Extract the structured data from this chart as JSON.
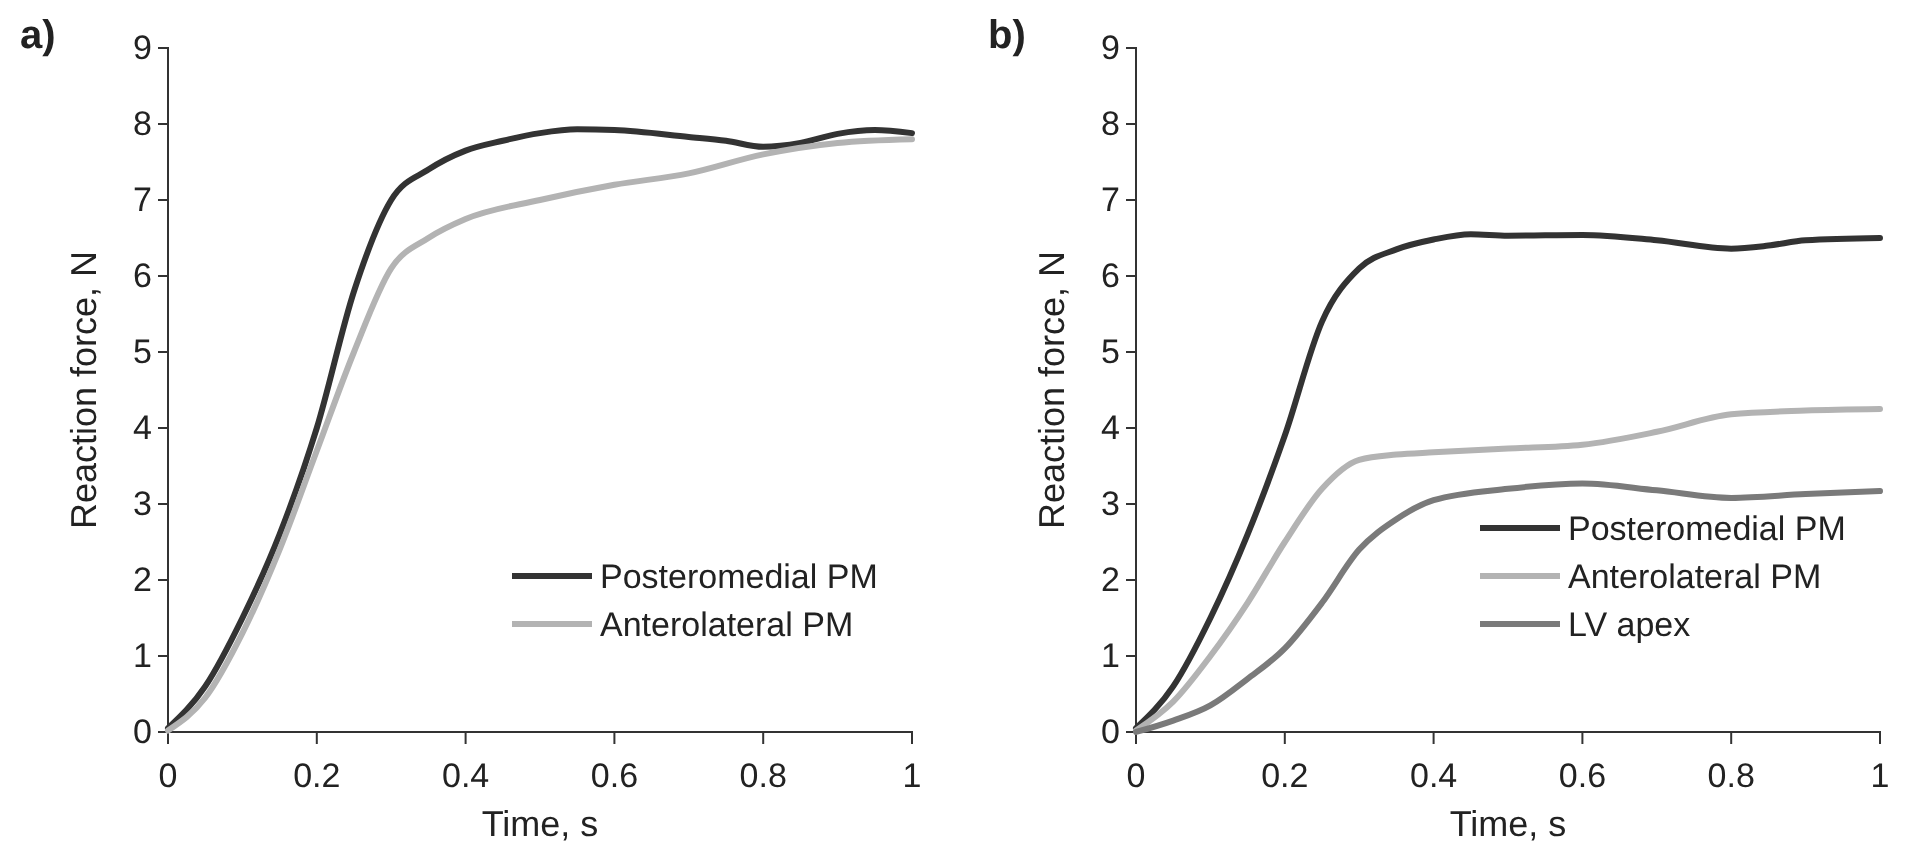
{
  "chart_data": [
    {
      "type": "line",
      "title": "a)",
      "xlabel": "Time, s",
      "ylabel": "Reaction force, N",
      "xlim": [
        0,
        1
      ],
      "xticks": [
        0,
        0.2,
        0.4,
        0.6,
        0.8,
        1
      ],
      "ylim": [
        0,
        9
      ],
      "yticks": [
        0,
        1,
        2,
        3,
        4,
        5,
        6,
        7,
        8,
        9
      ],
      "legend": "bottom right",
      "x": [
        0,
        0.05,
        0.1,
        0.15,
        0.2,
        0.25,
        0.3,
        0.35,
        0.4,
        0.45,
        0.5,
        0.55,
        0.6,
        0.7,
        0.75,
        0.8,
        0.85,
        0.9,
        0.95,
        1
      ],
      "series": [
        {
          "name": "Posteromedial PM",
          "color": "#333333",
          "values": [
            0.05,
            0.6,
            1.5,
            2.6,
            4.0,
            5.8,
            7.0,
            7.4,
            7.65,
            7.78,
            7.88,
            7.93,
            7.92,
            7.83,
            7.78,
            7.7,
            7.75,
            7.87,
            7.92,
            7.88
          ]
        },
        {
          "name": "Anterolateral PM",
          "color": "#b3b3b3",
          "x": [
            0,
            0.05,
            0.1,
            0.15,
            0.2,
            0.25,
            0.3,
            0.35,
            0.4,
            0.5,
            0.6,
            0.7,
            0.8,
            0.9,
            1
          ],
          "values": [
            0.02,
            0.45,
            1.3,
            2.4,
            3.7,
            5.0,
            6.1,
            6.5,
            6.75,
            7.0,
            7.2,
            7.35,
            7.6,
            7.75,
            7.8
          ]
        }
      ]
    },
    {
      "type": "line",
      "title": "b)",
      "xlabel": "Time, s",
      "ylabel": "Reaction force, N",
      "xlim": [
        0,
        1
      ],
      "xticks": [
        0,
        0.2,
        0.4,
        0.6,
        0.8,
        1
      ],
      "ylim": [
        0,
        9
      ],
      "yticks": [
        0,
        1,
        2,
        3,
        4,
        5,
        6,
        7,
        8,
        9
      ],
      "legend": "bottom right",
      "x": [
        0,
        0.05,
        0.1,
        0.15,
        0.2,
        0.25,
        0.3,
        0.35,
        0.4,
        0.5,
        0.6,
        0.7,
        0.8,
        0.9,
        1
      ],
      "series": [
        {
          "name": "Posteromedial PM",
          "color": "#333333",
          "x": [
            0,
            0.05,
            0.1,
            0.15,
            0.2,
            0.25,
            0.3,
            0.35,
            0.4,
            0.45,
            0.5,
            0.6,
            0.7,
            0.8,
            0.85,
            0.9,
            1
          ],
          "values": [
            0.05,
            0.6,
            1.5,
            2.6,
            3.9,
            5.4,
            6.1,
            6.35,
            6.48,
            6.55,
            6.53,
            6.54,
            6.47,
            6.36,
            6.4,
            6.47,
            6.5
          ]
        },
        {
          "name": "Anterolateral PM",
          "color": "#b3b3b3",
          "values": [
            0.02,
            0.4,
            1.0,
            1.7,
            2.5,
            3.2,
            3.58,
            3.65,
            3.68,
            3.73,
            3.78,
            3.95,
            4.18,
            4.23,
            4.25
          ]
        },
        {
          "name": "LV apex",
          "color": "#7a7a7a",
          "values": [
            0.0,
            0.15,
            0.35,
            0.7,
            1.1,
            1.7,
            2.4,
            2.8,
            3.05,
            3.2,
            3.27,
            3.18,
            3.08,
            3.13,
            3.17
          ]
        }
      ]
    }
  ]
}
